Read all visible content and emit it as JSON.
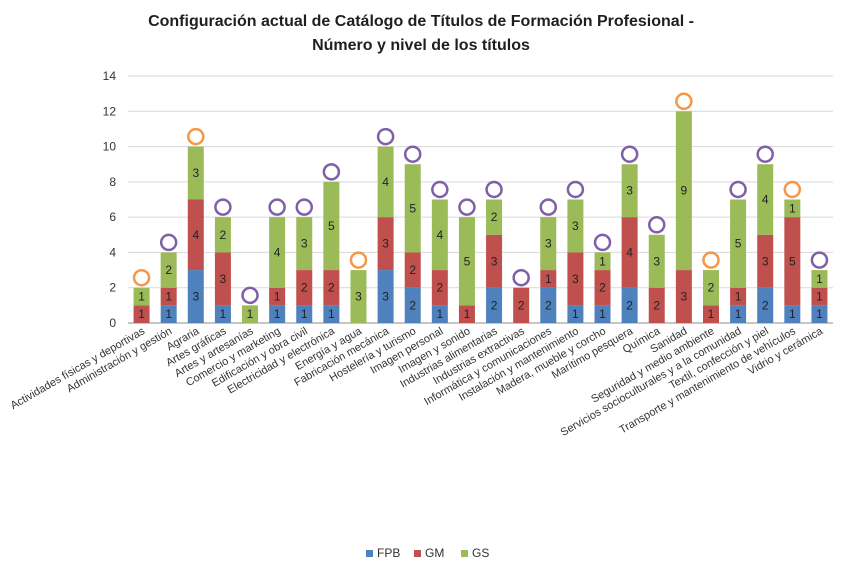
{
  "chart_data": {
    "type": "bar",
    "stacked": true,
    "title_line1": "Configuración  actual de Catálogo de Títulos de Formación Profesional -",
    "title_line2": "Número y nivel de los títulos",
    "categories": [
      "Actividades físicas y deportivas",
      "Administración y gestión",
      "Agraria",
      "Artes gráficas",
      "Artes y artesanías",
      "Comercio y marketing",
      "Edificación y obra civil",
      "Electricidad y electrónica",
      "Energía y agua",
      "Fabricación mecánica",
      "Hostelería y turismo",
      "Imagen personal",
      "Imagen y sonido",
      "Industrias alimentarias",
      "Industrias extractivas",
      "Informática y comunicaciones",
      "Instalación y mantenimiento",
      "Madera, mueble y corcho",
      "Marítimo pesquera",
      "Química",
      "Sanidad",
      "Seguridad y medio ambiente",
      "Servicios socioculturales y a la comunidad",
      "Textil, confección y piel",
      "Transporte y mantenimiento de vehículos",
      "Vidrio y cerámica"
    ],
    "series": [
      {
        "name": "FPB",
        "color": "#4f81bd",
        "values": [
          0,
          1,
          3,
          1,
          0,
          1,
          1,
          1,
          0,
          3,
          2,
          1,
          0,
          2,
          0,
          2,
          1,
          1,
          2,
          0,
          0,
          0,
          1,
          2,
          1,
          1
        ]
      },
      {
        "name": "GM",
        "color": "#c0504d",
        "values": [
          1,
          1,
          4,
          3,
          0,
          1,
          2,
          2,
          0,
          3,
          2,
          2,
          1,
          3,
          2,
          1,
          3,
          2,
          4,
          2,
          3,
          1,
          1,
          3,
          5,
          1
        ]
      },
      {
        "name": "GS",
        "color": "#9bbb59",
        "values": [
          1,
          2,
          3,
          2,
          1,
          4,
          3,
          5,
          3,
          4,
          5,
          4,
          5,
          2,
          0,
          3,
          3,
          1,
          3,
          3,
          9,
          2,
          5,
          4,
          1,
          1
        ]
      }
    ],
    "markers": [
      "orange",
      "purple",
      "orange",
      "purple",
      "purple",
      "purple",
      "purple",
      "purple",
      "orange",
      "purple",
      "purple",
      "purple",
      "purple",
      "purple",
      "purple",
      "purple",
      "purple",
      "purple",
      "purple",
      "purple",
      "orange",
      "orange",
      "purple",
      "purple",
      "orange",
      "purple"
    ],
    "marker_colors": {
      "orange": "#f79646",
      "purple": "#7f5fa8"
    },
    "ylim": [
      0,
      14
    ],
    "yticks": [
      "0",
      "2",
      "4",
      "6",
      "8",
      "10",
      "12",
      "14"
    ],
    "grid": true,
    "legend_position": "bottom"
  }
}
